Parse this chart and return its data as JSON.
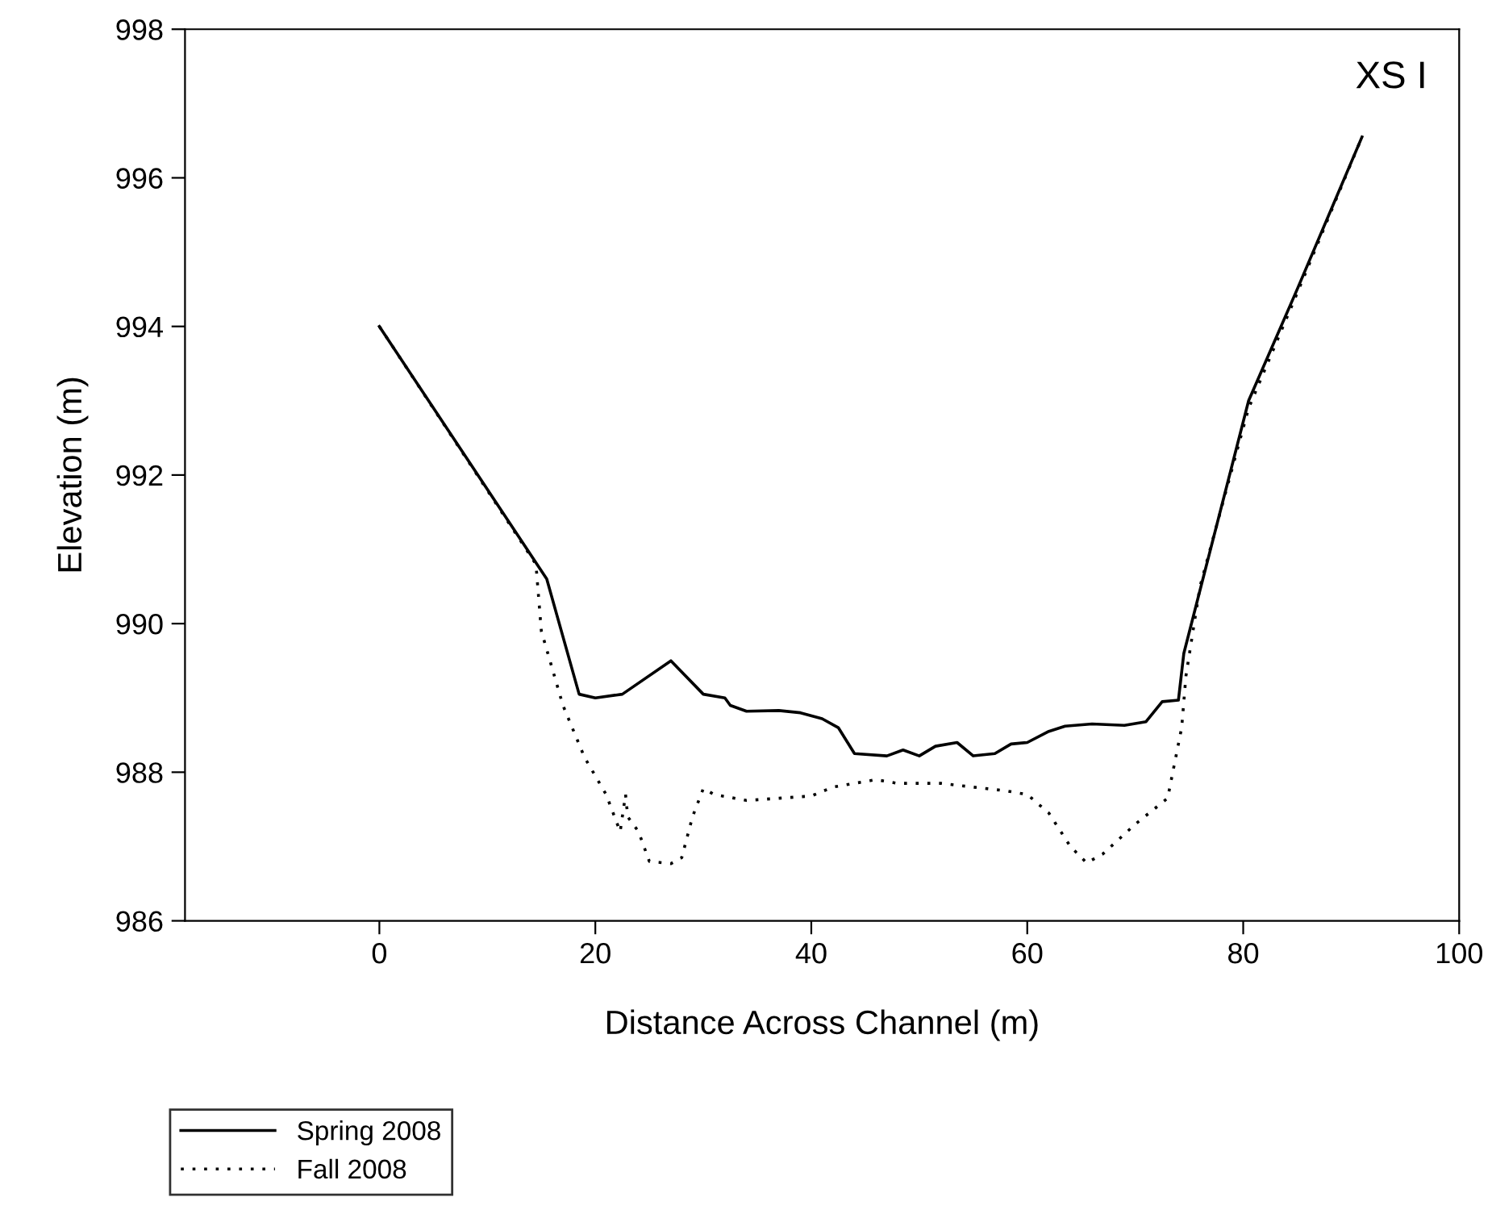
{
  "chart_data": {
    "type": "line",
    "xlabel": "Distance Across Channel (m)",
    "ylabel": "Elevation (m)",
    "annotations": [
      "XS I"
    ],
    "xlim": [
      -18,
      100
    ],
    "xticks": [
      0,
      20,
      40,
      60,
      80,
      100
    ],
    "ylim": [
      986,
      998
    ],
    "yticks": [
      986,
      988,
      990,
      992,
      994,
      996,
      998
    ],
    "grid": false,
    "legend": "bottom left",
    "marker": "none",
    "series": [
      {
        "name": "Spring 2008",
        "color": "#000000",
        "line_style": "solid",
        "x": [
          0,
          15.5,
          18.5,
          20,
          22.5,
          27,
          30,
          32,
          32.5,
          34,
          37,
          39,
          41,
          42.5,
          44,
          47,
          48.5,
          50,
          51.5,
          53.5,
          55,
          57,
          58.5,
          60,
          62,
          63.5,
          66,
          69,
          71,
          72.5,
          74,
          74.5,
          80.5,
          85,
          91
        ],
        "values": [
          994,
          990.6,
          989.05,
          989.0,
          989.05,
          989.5,
          989.05,
          989.0,
          988.9,
          988.82,
          988.83,
          988.8,
          988.72,
          988.6,
          988.25,
          988.22,
          988.3,
          988.22,
          988.35,
          988.4,
          988.22,
          988.25,
          988.38,
          988.4,
          988.55,
          988.62,
          988.65,
          988.63,
          988.68,
          988.95,
          988.97,
          989.6,
          993.0,
          994.5,
          996.55
        ]
      },
      {
        "name": "Fall 2008",
        "color": "#000000",
        "line_style": "dotted",
        "x": [
          0,
          14.5,
          15,
          17,
          19,
          21,
          22.3,
          22.8,
          23,
          24,
          25,
          27,
          28,
          29,
          30,
          31,
          34,
          37,
          40,
          42,
          46,
          48,
          52,
          55,
          58,
          60,
          62,
          64,
          65.5,
          67,
          70,
          73,
          74.3,
          74.7,
          76,
          80.5,
          85,
          91
        ],
        "values": [
          994,
          990.8,
          989.9,
          988.9,
          988.2,
          987.7,
          987.2,
          987.7,
          987.4,
          987.2,
          986.8,
          986.77,
          986.85,
          987.4,
          987.78,
          987.7,
          987.62,
          987.65,
          987.68,
          987.8,
          987.9,
          987.85,
          987.85,
          987.8,
          987.75,
          987.7,
          987.45,
          987.0,
          986.78,
          986.9,
          987.3,
          987.65,
          988.6,
          989.3,
          990.5,
          992.9,
          994.45,
          996.55
        ]
      }
    ]
  }
}
